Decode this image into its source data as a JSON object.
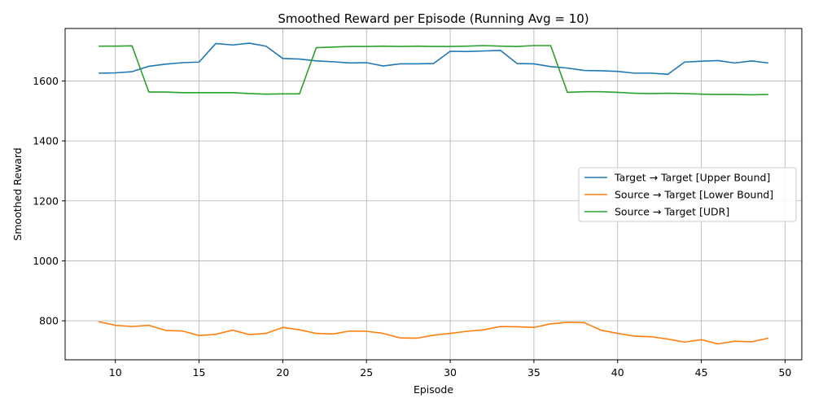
{
  "chart_data": {
    "type": "line",
    "title": "Smoothed Reward per Episode (Running Avg = 10)",
    "xlabel": "Episode",
    "ylabel": "Smoothed Reward",
    "xlim": [
      7,
      51
    ],
    "ylim": [
      670,
      1775
    ],
    "xticks": [
      10,
      15,
      20,
      25,
      30,
      35,
      40,
      45,
      50
    ],
    "yticks": [
      800,
      1000,
      1200,
      1400,
      1600
    ],
    "grid": true,
    "legend_position": "center-right",
    "x": [
      9,
      10,
      11,
      12,
      13,
      14,
      15,
      16,
      17,
      18,
      19,
      20,
      21,
      22,
      23,
      24,
      25,
      26,
      27,
      28,
      29,
      30,
      31,
      32,
      33,
      34,
      35,
      36,
      37,
      38,
      39,
      40,
      41,
      42,
      43,
      44,
      45,
      46,
      47,
      48,
      49
    ],
    "series": [
      {
        "name": "Target → Target [Upper Bound]",
        "color": "#1f77b4",
        "values": [
          1626,
          1627,
          1631,
          1649,
          1656,
          1661,
          1663,
          1725,
          1720,
          1726,
          1716,
          1675,
          1673,
          1667,
          1664,
          1660,
          1661,
          1650,
          1657,
          1657,
          1658,
          1699,
          1698,
          1700,
          1702,
          1658,
          1657,
          1648,
          1643,
          1635,
          1634,
          1632,
          1626,
          1626,
          1622,
          1663,
          1666,
          1668,
          1660,
          1667,
          1660
        ]
      },
      {
        "name": "Source → Target [Lower Bound]",
        "color": "#ff7f0e",
        "values": [
          797,
          785,
          781,
          785,
          768,
          766,
          751,
          755,
          769,
          754,
          758,
          778,
          770,
          758,
          756,
          766,
          765,
          758,
          743,
          742,
          752,
          758,
          765,
          770,
          781,
          780,
          778,
          790,
          795,
          794,
          769,
          758,
          749,
          747,
          739,
          729,
          737,
          723,
          732,
          730,
          742
        ]
      },
      {
        "name": "Source → Target [UDR]",
        "color": "#2ca02c",
        "values": [
          1716,
          1716,
          1717,
          1563,
          1563,
          1561,
          1561,
          1561,
          1561,
          1558,
          1556,
          1557,
          1557,
          1711,
          1713,
          1715,
          1715,
          1716,
          1715,
          1716,
          1715,
          1715,
          1716,
          1718,
          1716,
          1715,
          1718,
          1718,
          1562,
          1564,
          1564,
          1562,
          1559,
          1558,
          1559,
          1558,
          1556,
          1555,
          1555,
          1554,
          1555
        ]
      }
    ]
  }
}
